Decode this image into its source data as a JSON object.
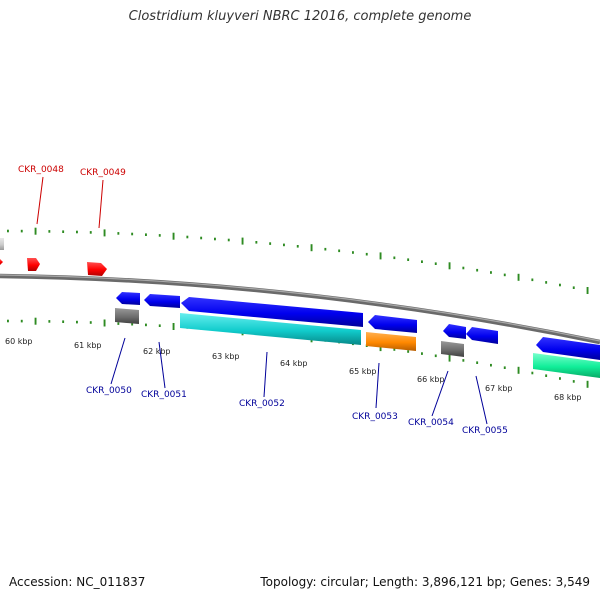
{
  "title": "Clostridium kluyveri NBRC 12016, complete genome",
  "footer": {
    "accession_label": "Accession: NC_011837",
    "summary_label": "Topology: circular; Length: 3,896,121 bp; Genes: 3,549"
  },
  "colors": {
    "backbone": "#808080",
    "tick": "#2e8b22",
    "upper_label": "#cc0000",
    "lower_label": "#000099",
    "kbp_label": "#222222",
    "gene_red": "#ff0000",
    "gene_blue": "#0000ee",
    "gene_gray": "#6e6e6e",
    "gene_light_gray": "#cccccc",
    "gene_cyan": "#11cccc",
    "gene_orange": "#ff8800",
    "gene_green": "#11ee99"
  },
  "kbp_labels": [
    "60 kbp",
    "61 kbp",
    "62 kbp",
    "63 kbp",
    "64 kbp",
    "65 kbp",
    "66 kbp",
    "67 kbp",
    "68 kbp"
  ],
  "upper_gene_labels": [
    "CKR_0048",
    "CKR_0049"
  ],
  "lower_gene_labels": [
    "CKR_0050",
    "CKR_0051",
    "CKR_0052",
    "CKR_0053",
    "CKR_0054",
    "CKR_0055"
  ]
}
